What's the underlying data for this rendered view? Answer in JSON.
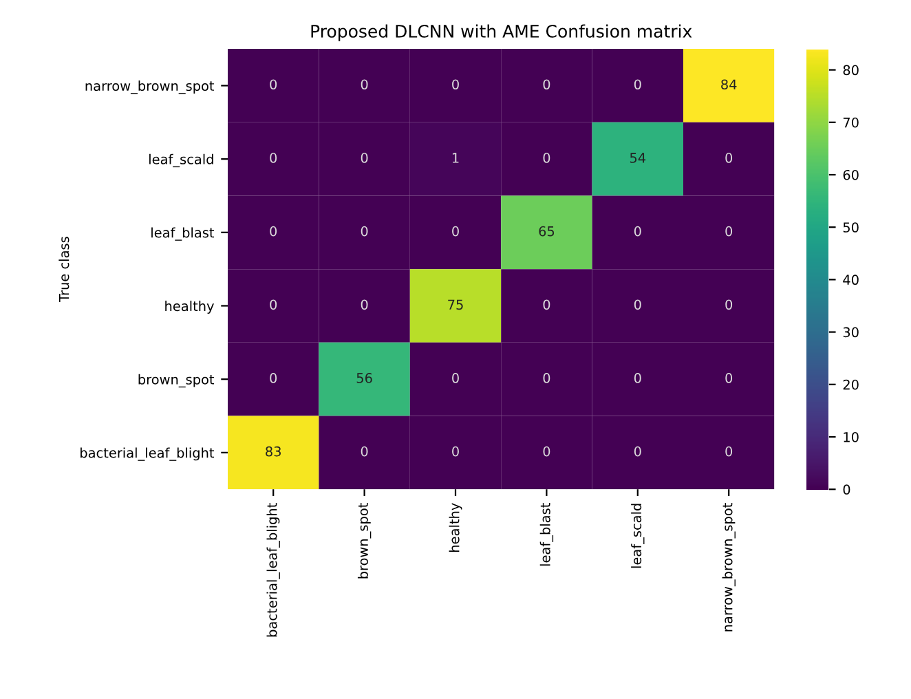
{
  "chart_data": {
    "type": "heatmap",
    "title": "Proposed DLCNN with AME Confusion matrix",
    "ylabel": "True class",
    "categories": [
      "bacterial_leaf_blight",
      "brown_spot",
      "healthy",
      "leaf_blast",
      "leaf_scald",
      "narrow_brown_spot"
    ],
    "y_categories": [
      "narrow_brown_spot",
      "leaf_scald",
      "leaf_blast",
      "healthy",
      "brown_spot",
      "bacterial_leaf_blight"
    ],
    "cells": [
      [
        0,
        0,
        0,
        0,
        0,
        84
      ],
      [
        0,
        0,
        1,
        0,
        54,
        0
      ],
      [
        0,
        0,
        0,
        65,
        0,
        0
      ],
      [
        0,
        0,
        75,
        0,
        0,
        0
      ],
      [
        0,
        56,
        0,
        0,
        0,
        0
      ],
      [
        83,
        0,
        0,
        0,
        0,
        0
      ]
    ],
    "clim": [
      0,
      84
    ],
    "cticks": [
      0,
      10,
      20,
      30,
      40,
      50,
      60,
      70,
      80
    ],
    "data_labels": true
  }
}
